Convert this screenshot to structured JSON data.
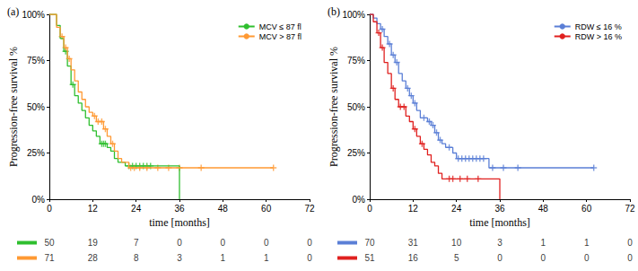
{
  "chart_data": [
    {
      "type": "line",
      "title": "(a)",
      "x_label": "time [months]",
      "y_label": "Progression-free survival %",
      "xlim": [
        0,
        72
      ],
      "xticks": [
        0,
        12,
        24,
        36,
        48,
        60,
        72
      ],
      "ylim": [
        0,
        100
      ],
      "yticks": [
        {
          "value": 0,
          "label": "0%"
        },
        {
          "value": 25,
          "label": "25%"
        },
        {
          "value": 50,
          "label": "50%"
        },
        {
          "value": 75,
          "label": "75%"
        },
        {
          "value": 100,
          "label": "100%"
        }
      ],
      "grid": false,
      "legend": "top-right",
      "line_style": "step",
      "marker": "plus",
      "at_risk_times": [
        0,
        12,
        24,
        36,
        48,
        60,
        72
      ],
      "series": [
        {
          "name": "MCV ≤ 87 fl",
          "color": "#2fbf2f",
          "x": [
            0,
            2,
            3,
            4,
            5,
            6,
            7,
            8,
            9,
            10,
            11,
            12,
            13,
            14,
            16,
            17,
            18,
            19,
            21,
            36,
            36
          ],
          "values": [
            100,
            94,
            87,
            80,
            72,
            62,
            56,
            52,
            48,
            44,
            40,
            37,
            34,
            30,
            28,
            26,
            22,
            20,
            18,
            18,
            0
          ],
          "censored_x": [
            4.5,
            6.5,
            14.5,
            15,
            15.5,
            22,
            23,
            24,
            25,
            26,
            27,
            28
          ],
          "at_risk": [
            50,
            19,
            7,
            0,
            0,
            0,
            0
          ]
        },
        {
          "name": "MCV > 87 fl",
          "color": "#ff9933",
          "x": [
            0,
            2,
            3,
            4,
            5,
            6,
            7,
            8,
            9,
            10,
            11,
            12,
            13,
            15,
            16,
            17,
            18,
            19,
            20,
            22,
            62
          ],
          "values": [
            100,
            93,
            88,
            82,
            76,
            70,
            64,
            58,
            54,
            50,
            47,
            45,
            42,
            38,
            34,
            30,
            26,
            22,
            20,
            17,
            17
          ],
          "censored_x": [
            3.5,
            4.5,
            5.5,
            12.5,
            13.5,
            14.5,
            15.5,
            17.5,
            22.5,
            23.5,
            25,
            27,
            30,
            33,
            36,
            42,
            62
          ],
          "at_risk": [
            71,
            28,
            8,
            3,
            1,
            1,
            0
          ]
        }
      ]
    },
    {
      "type": "line",
      "title": "(b)",
      "x_label": "time [months]",
      "y_label": "Progression-free survival %",
      "xlim": [
        0,
        72
      ],
      "xticks": [
        0,
        12,
        24,
        36,
        48,
        60,
        72
      ],
      "ylim": [
        0,
        100
      ],
      "yticks": [
        {
          "value": 0,
          "label": "0%"
        },
        {
          "value": 25,
          "label": "25%"
        },
        {
          "value": 50,
          "label": "50%"
        },
        {
          "value": 75,
          "label": "75%"
        },
        {
          "value": 100,
          "label": "100%"
        }
      ],
      "grid": false,
      "legend": "top-right",
      "line_style": "step",
      "marker": "plus",
      "at_risk_times": [
        0,
        12,
        24,
        36,
        48,
        60,
        72
      ],
      "series": [
        {
          "name": "RDW ≤ 16 %",
          "color": "#5b7fd6",
          "x": [
            0,
            1,
            2,
            3,
            4,
            5,
            6,
            7,
            8,
            9,
            10,
            11,
            12,
            13,
            14,
            16,
            17,
            18,
            19,
            20,
            21,
            23,
            24,
            33,
            62
          ],
          "values": [
            100,
            98,
            95,
            92,
            88,
            84,
            78,
            74,
            68,
            64,
            60,
            56,
            52,
            48,
            44,
            42,
            40,
            36,
            32,
            30,
            28,
            25,
            22,
            17,
            17
          ],
          "censored_x": [
            3.5,
            5.5,
            6.5,
            7.5,
            10.5,
            11.5,
            12.5,
            15,
            16.5,
            17.5,
            18.5,
            19.5,
            22,
            24.5,
            25.5,
            26.5,
            27.5,
            28.5,
            29.5,
            30.5,
            31.5,
            34,
            37,
            41,
            62
          ],
          "at_risk": [
            70,
            31,
            10,
            3,
            1,
            1,
            0
          ]
        },
        {
          "name": "RDW > 16 %",
          "color": "#e0201f",
          "x": [
            0,
            1,
            2,
            3,
            4,
            5,
            6,
            7,
            8,
            10,
            11,
            12,
            13,
            14,
            15,
            16,
            17,
            18,
            19,
            20,
            36,
            36
          ],
          "values": [
            100,
            96,
            90,
            82,
            74,
            68,
            60,
            54,
            50,
            45,
            42,
            38,
            34,
            30,
            27,
            24,
            20,
            18,
            14,
            11,
            11,
            0
          ],
          "censored_x": [
            2.5,
            3.5,
            6.5,
            8.5,
            9.5,
            12.5,
            14.5,
            22,
            23,
            25,
            27,
            30
          ],
          "at_risk": [
            51,
            16,
            5,
            0,
            0,
            0,
            0
          ]
        }
      ]
    }
  ]
}
